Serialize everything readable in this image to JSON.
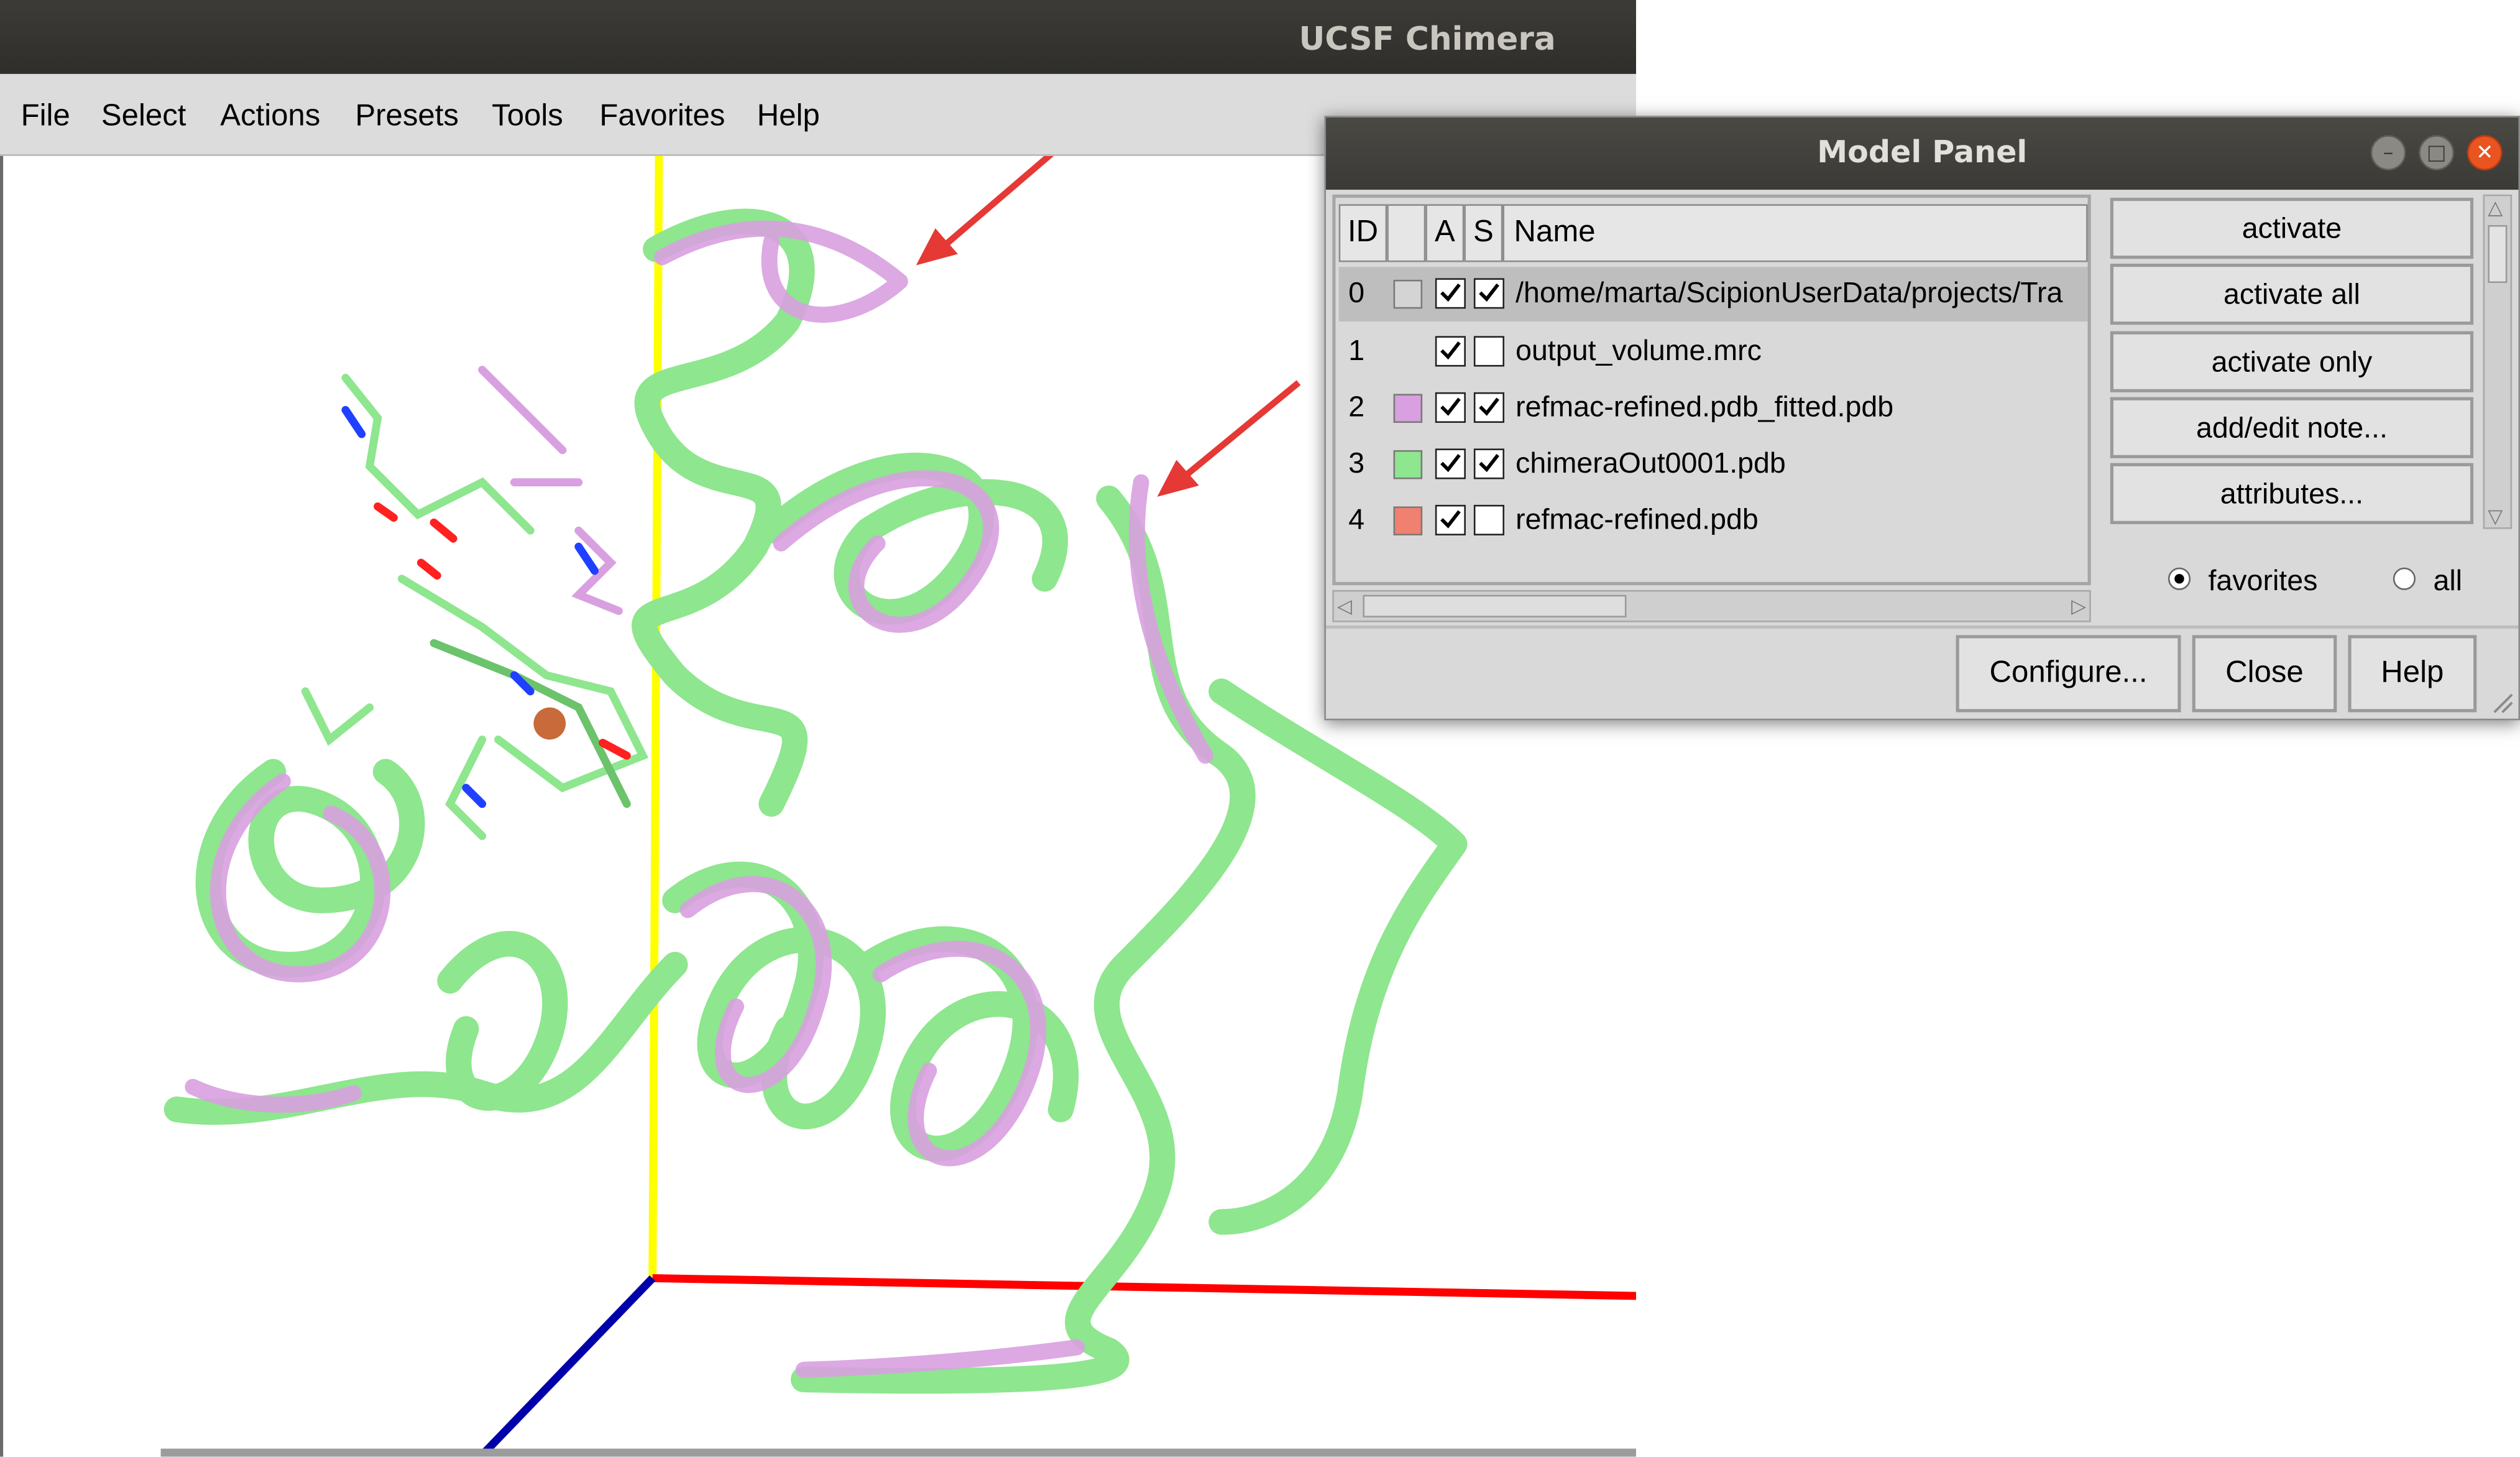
{
  "chimera": {
    "title": "UCSF Chimera",
    "menu": [
      "File",
      "Select",
      "Actions",
      "Presets",
      "Tools",
      "Favorites",
      "Help"
    ]
  },
  "model_panel": {
    "title": "Model Panel",
    "columns": {
      "id": "ID",
      "active": "A",
      "shown": "S",
      "name": "Name"
    },
    "rows": [
      {
        "id": "0",
        "swatch": "#d4d4d4",
        "active": true,
        "shown": true,
        "name": "/home/marta/ScipionUserData/projects/Tra"
      },
      {
        "id": "1",
        "swatch": "",
        "active": true,
        "shown": false,
        "name": "output_volume.mrc"
      },
      {
        "id": "2",
        "swatch": "#d8a0e0",
        "active": true,
        "shown": true,
        "name": "refmac-refined.pdb_fitted.pdb"
      },
      {
        "id": "3",
        "swatch": "#8ee68e",
        "active": true,
        "shown": true,
        "name": "chimeraOut0001.pdb"
      },
      {
        "id": "4",
        "swatch": "#f08070",
        "active": true,
        "shown": false,
        "name": "refmac-refined.pdb"
      }
    ],
    "side_buttons": [
      "activate",
      "activate all",
      "activate only",
      "add/edit note...",
      "attributes..."
    ],
    "filter": {
      "favorites": "favorites",
      "all": "all",
      "selected": "favorites"
    },
    "bottom_buttons": {
      "configure": "Configure...",
      "close": "Close",
      "help": "Help"
    }
  },
  "colors": {
    "model_green": "#8ee68e",
    "model_pink": "#d8a0e0",
    "annotation_arrow": "#e53935",
    "axis_x": "#ff0000",
    "axis_y": "#ffff00",
    "axis_z": "#0000aa"
  }
}
